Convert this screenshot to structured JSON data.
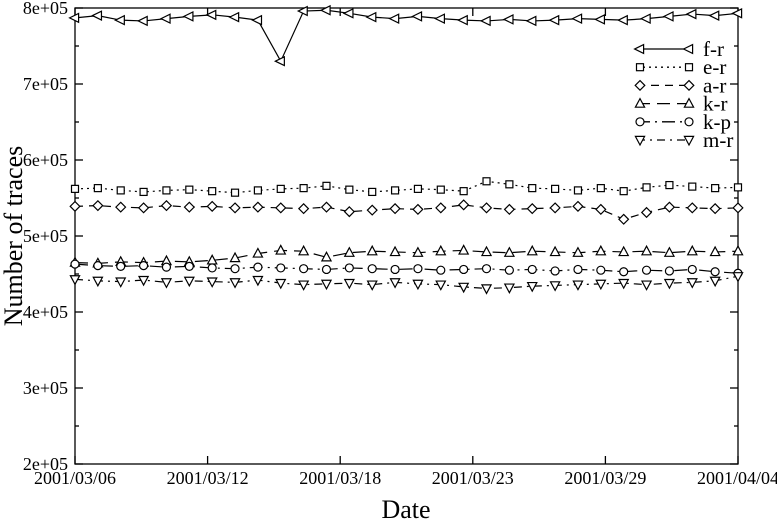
{
  "page": {
    "background": "#ffffff",
    "foreground": "#000000"
  },
  "chart_data": {
    "type": "line",
    "title": "",
    "xlabel": "Date",
    "ylabel": "Number of traces",
    "grid": false,
    "monochrome": true,
    "stroke_color": "#000000",
    "background_color": "#ffffff",
    "ylim": [
      200000,
      800000
    ],
    "y_tick_values": [
      200000,
      300000,
      400000,
      500000,
      600000,
      700000,
      800000
    ],
    "y_tick_labels": [
      "2e+05",
      "3e+05",
      "4e+05",
      "5e+05",
      "6e+05",
      "7e+05",
      "8e+05"
    ],
    "y_minor_tick_values": [
      250000,
      350000,
      450000,
      550000,
      650000,
      750000
    ],
    "x_tick_labels": [
      "2001/03/06",
      "2001/03/12",
      "2001/03/18",
      "2001/03/23",
      "2001/03/29",
      "2001/04/04"
    ],
    "points_per_series": 30,
    "legend": {
      "position": "top-right-inside"
    },
    "series": [
      {
        "name": "f-r",
        "marker": "triangle-left",
        "line_style": "solid",
        "values": [
          787000,
          790000,
          784000,
          783000,
          786000,
          789000,
          791000,
          788000,
          784000,
          730000,
          796000,
          797000,
          793000,
          788000,
          786000,
          789000,
          786000,
          784000,
          783000,
          785000,
          783000,
          784000,
          786000,
          785000,
          784000,
          786000,
          789000,
          792000,
          790000,
          793000
        ]
      },
      {
        "name": "e-r",
        "marker": "square",
        "line_style": "dotted",
        "values": [
          562000,
          563000,
          560000,
          558000,
          560000,
          561000,
          559000,
          557000,
          560000,
          562000,
          563000,
          566000,
          561000,
          558000,
          560000,
          562000,
          561000,
          559000,
          572000,
          568000,
          563000,
          562000,
          560000,
          563000,
          559000,
          564000,
          567000,
          565000,
          563000,
          564000
        ]
      },
      {
        "name": "a-r",
        "marker": "diamond",
        "line_style": "dashed",
        "values": [
          539000,
          540000,
          538000,
          537000,
          540000,
          538000,
          539000,
          537000,
          538000,
          537000,
          536000,
          538000,
          532000,
          534000,
          536000,
          535000,
          537000,
          541000,
          537000,
          535000,
          536000,
          537000,
          539000,
          535000,
          522000,
          531000,
          538000,
          537000,
          536000,
          537000
        ]
      },
      {
        "name": "k-r",
        "marker": "triangle-up",
        "line_style": "long-dash",
        "values": [
          465000,
          464000,
          466000,
          465000,
          467000,
          466000,
          468000,
          471000,
          477000,
          481000,
          480000,
          472000,
          478000,
          480000,
          479000,
          478000,
          480000,
          481000,
          479000,
          478000,
          480000,
          479000,
          478000,
          480000,
          479000,
          480000,
          478000,
          480000,
          479000,
          480000
        ]
      },
      {
        "name": "k-p",
        "marker": "circle",
        "line_style": "dash-dot",
        "values": [
          463000,
          461000,
          460000,
          461000,
          459000,
          460000,
          458000,
          457000,
          459000,
          458000,
          457000,
          456000,
          458000,
          457000,
          456000,
          457000,
          455000,
          456000,
          457000,
          455000,
          456000,
          454000,
          456000,
          455000,
          453000,
          455000,
          454000,
          456000,
          453000,
          451000
        ]
      },
      {
        "name": "m-r",
        "marker": "triangle-down",
        "line_style": "dash-dot-short",
        "values": [
          443000,
          441000,
          440000,
          442000,
          439000,
          441000,
          440000,
          439000,
          442000,
          438000,
          436000,
          437000,
          438000,
          436000,
          439000,
          437000,
          436000,
          433000,
          431000,
          432000,
          434000,
          435000,
          436000,
          437000,
          438000,
          436000,
          438000,
          439000,
          441000,
          447000
        ]
      }
    ]
  }
}
